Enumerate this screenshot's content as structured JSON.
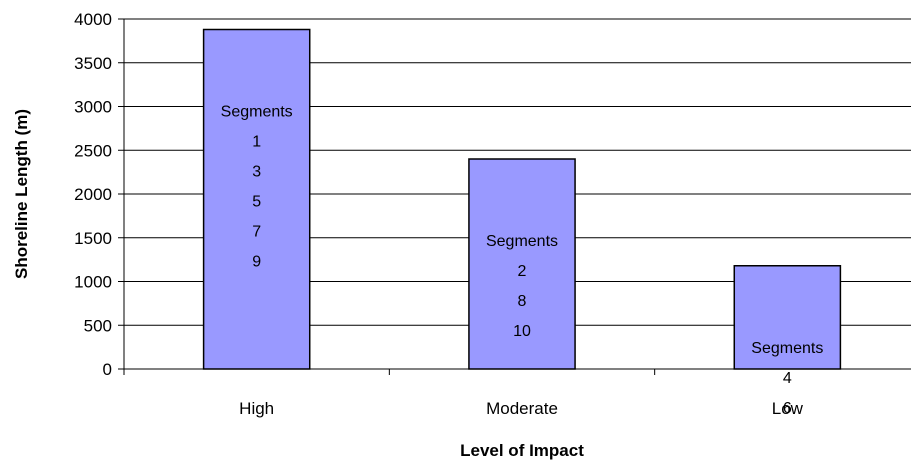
{
  "chart_data": {
    "type": "bar",
    "title": "",
    "xlabel": "Level of Impact",
    "ylabel": "Shoreline Length (m)",
    "categories": [
      "High",
      "Moderate",
      "Low"
    ],
    "values": [
      3880,
      2400,
      1180
    ],
    "ylim": [
      0,
      4000
    ],
    "yticks": [
      0,
      500,
      1000,
      1500,
      2000,
      2500,
      3000,
      3500,
      4000
    ],
    "grid": true,
    "bar_color": "#9999ff",
    "bar_labels": [
      [
        "Segments",
        "1",
        "3",
        "5",
        "7",
        "9"
      ],
      [
        "Segments",
        "2",
        "8",
        "10"
      ],
      [
        "Segments",
        "4",
        "6"
      ]
    ]
  }
}
